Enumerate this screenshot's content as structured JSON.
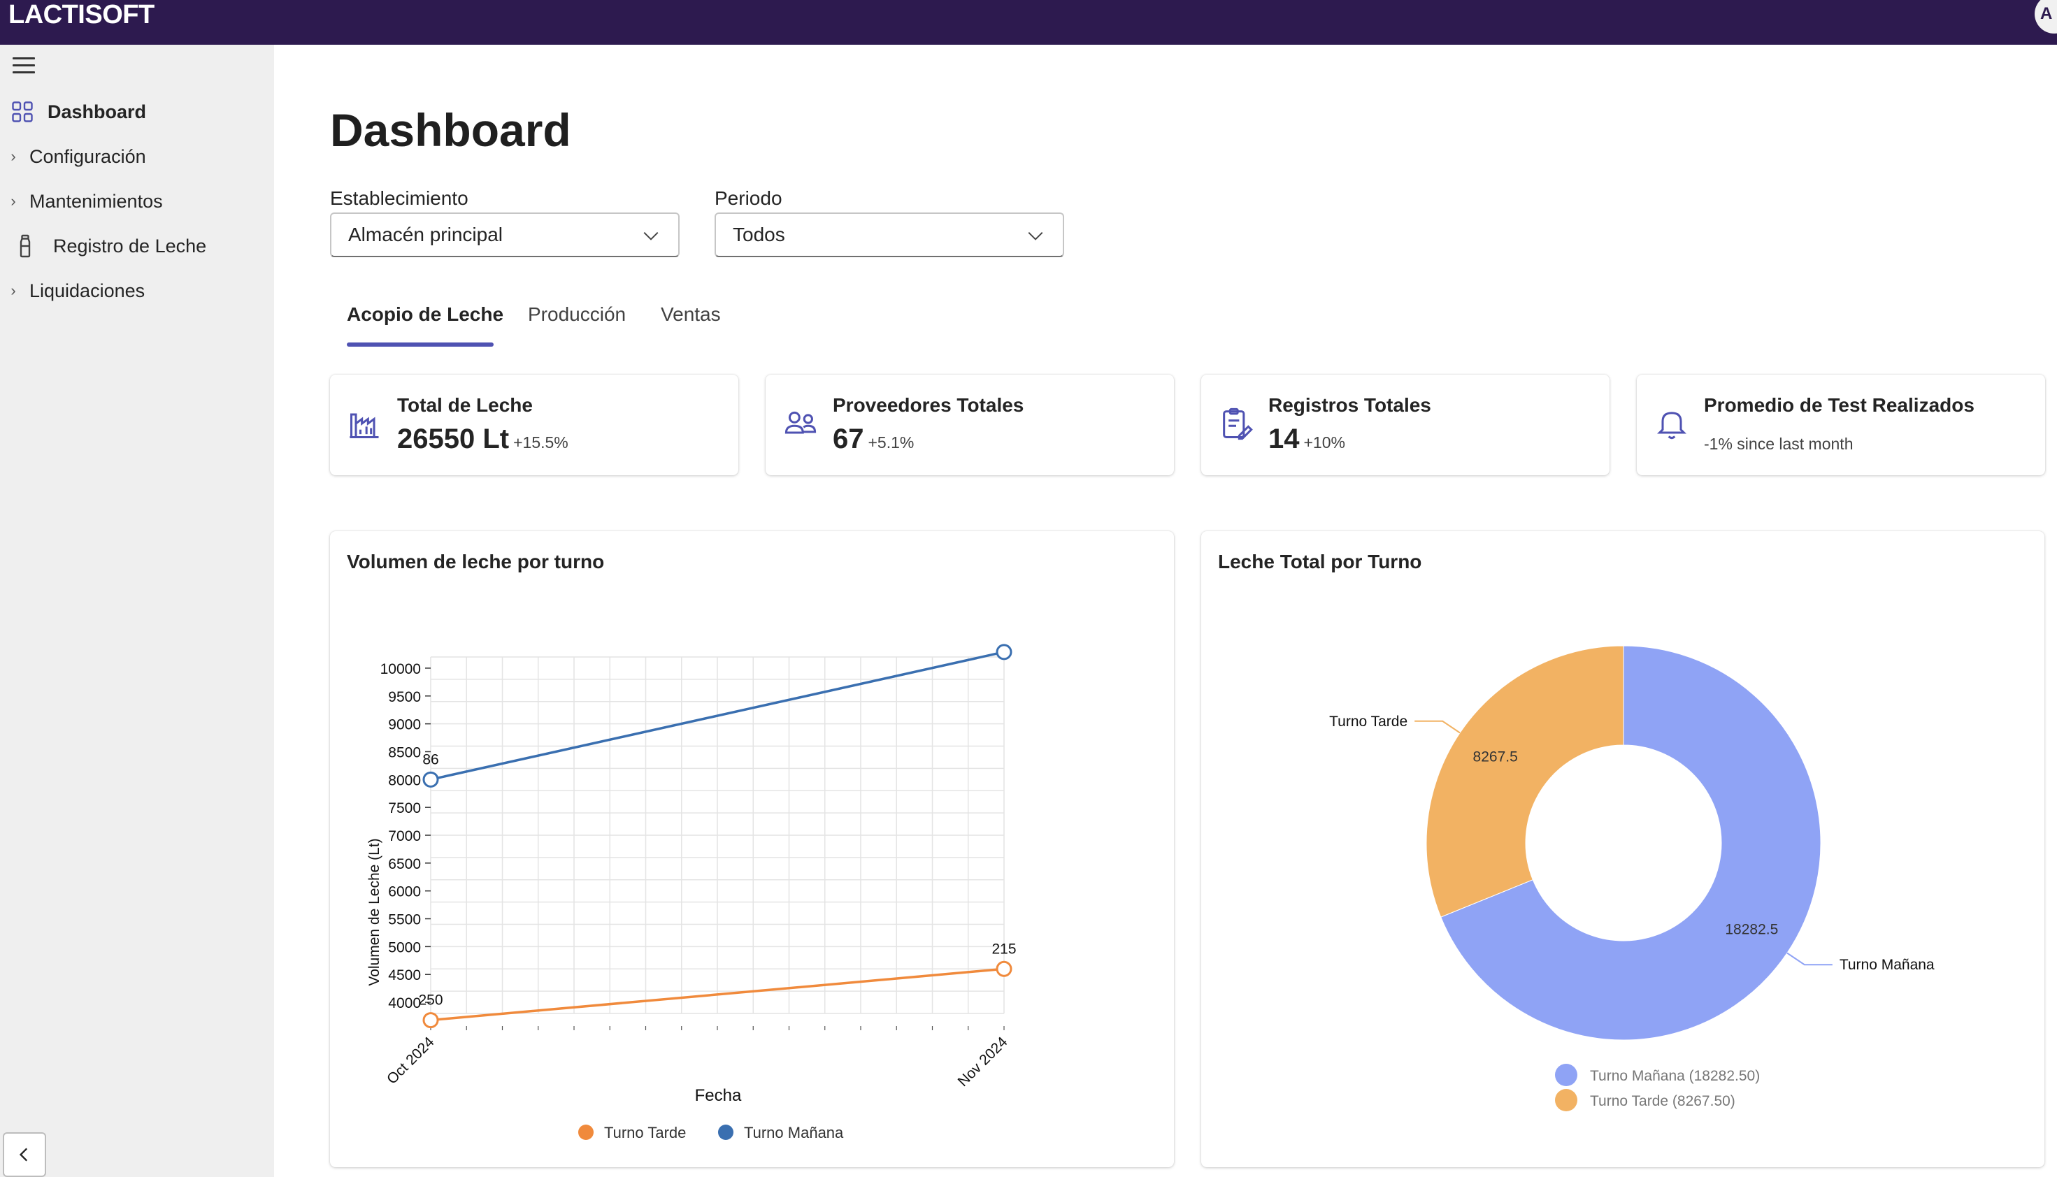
{
  "app": {
    "brand": "LACTISOFT",
    "avatar_initial": "A"
  },
  "sidebar": {
    "items": [
      {
        "label": "Dashboard",
        "icon": "grid-icon",
        "active": true
      },
      {
        "label": "Configuración",
        "icon": "chevron-right-icon"
      },
      {
        "label": "Mantenimientos",
        "icon": "chevron-right-icon"
      },
      {
        "label": "Registro de Leche",
        "icon": "bottle-icon"
      },
      {
        "label": "Liquidaciones",
        "icon": "chevron-right-icon"
      }
    ]
  },
  "page": {
    "title": "Dashboard"
  },
  "filters": {
    "establecimiento": {
      "label": "Establecimiento",
      "value": "Almacén principal"
    },
    "periodo": {
      "label": "Periodo",
      "value": "Todos"
    }
  },
  "tabs": [
    {
      "label": "Acopio de Leche",
      "active": true
    },
    {
      "label": "Producción"
    },
    {
      "label": "Ventas"
    }
  ],
  "stats": [
    {
      "title": "Total de Leche",
      "value": "26550 Lt",
      "delta": "+15.5%",
      "icon": "factory-chart-icon"
    },
    {
      "title": "Proveedores Totales",
      "value": "67",
      "delta": "+5.1%",
      "icon": "people-icon"
    },
    {
      "title": "Registros Totales",
      "value": "14",
      "delta": "+10%",
      "icon": "clipboard-edit-icon"
    },
    {
      "title": "Promedio de Test Realizados",
      "note": "-1% since last month",
      "icon": "bell-icon"
    }
  ],
  "colors": {
    "accent": "#4f52b2",
    "topbar": "#2d1a4f",
    "tarde": "#f08a3c",
    "manana": "#3a6fb0",
    "pie_manana": "#8fa3f5",
    "pie_tarde": "#f2b263"
  },
  "chart_data": [
    {
      "type": "line",
      "title": "Volumen de leche por turno",
      "xlabel": "Fecha",
      "ylabel": "Volumen de Leche (Lt)",
      "categories": [
        "Oct 2024",
        "Nov 2024"
      ],
      "ylim": [
        3800,
        10200
      ],
      "yticks": [
        4000,
        4500,
        5000,
        5500,
        6000,
        6500,
        7000,
        7500,
        8000,
        8500,
        9000,
        9500,
        10000
      ],
      "grid": true,
      "legend": "bottom",
      "series": [
        {
          "name": "Turno Tarde",
          "values": [
            3680,
            4600
          ],
          "labels": [
            "250",
            "215"
          ]
        },
        {
          "name": "Turno Mañana",
          "values": [
            8000,
            10290
          ],
          "labels": [
            "86",
            ""
          ]
        }
      ]
    },
    {
      "type": "pie",
      "title": "Leche Total por Turno",
      "legend": "bottom",
      "slices": [
        {
          "name": "Turno Mañana",
          "value": 18282.5,
          "label": "18282.5",
          "legend_label": "Turno Mañana (18282.50)"
        },
        {
          "name": "Turno Tarde",
          "value": 8267.5,
          "label": "8267.5",
          "legend_label": "Turno Tarde (8267.50)"
        }
      ]
    }
  ]
}
